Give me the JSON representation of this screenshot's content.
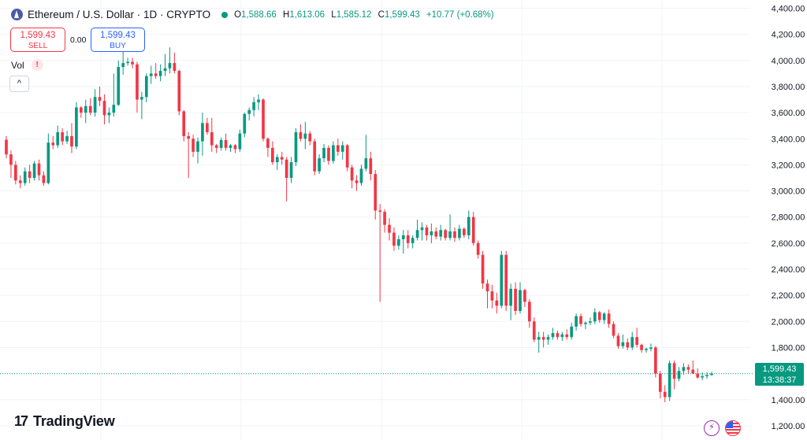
{
  "header": {
    "symbol": "Ethereum / U.S. Dollar · 1D · CRYPTO",
    "open_key": "O",
    "open": "1,588.66",
    "high_key": "H",
    "high": "1,613.06",
    "low_key": "L",
    "low": "1,585.12",
    "close_key": "C",
    "close": "1,599.43",
    "change": "+10.77 (+0.68%)"
  },
  "trade": {
    "sell_price": "1,599.43",
    "sell_label": "SELL",
    "spread": "0.00",
    "buy_price": "1,599.43",
    "buy_label": "BUY"
  },
  "indicator": {
    "vol_label": "Vol",
    "warn": "!",
    "collapse": "^"
  },
  "price_label": {
    "price": "1,599.43",
    "countdown": "13:38:37"
  },
  "brand": {
    "mark": "17",
    "name": "TradingView"
  },
  "icons": {
    "bolt": "lightning-icon",
    "flag": "us-flag-icon"
  },
  "colors": {
    "up": "#089981",
    "down": "#f23645",
    "grid": "#f0f3fa",
    "price_line": "#089981"
  },
  "chart_data": {
    "type": "candlestick",
    "title": "Ethereum / U.S. Dollar · 1D · CRYPTO",
    "ylim": [
      1100,
      4440
    ],
    "yticks": [
      4400,
      4200,
      4000,
      3800,
      3600,
      3400,
      3200,
      3000,
      2800,
      2600,
      2400,
      2200,
      2000,
      1800,
      1600,
      1400,
      1200
    ],
    "ytick_labels": [
      "4,400.00",
      "4,200.00",
      "4,000.00",
      "3,800.00",
      "3,600.00",
      "3,400.00",
      "3,200.00",
      "3,000.00",
      "2,800.00",
      "2,600.00",
      "2,400.00",
      "2,200.00",
      "2,000.00",
      "1,800.00",
      "",
      "1,400.00",
      "1,200.00"
    ],
    "last_price": 1599.43,
    "candles": [
      [
        3392,
        3420,
        3250,
        3280
      ],
      [
        3280,
        3310,
        3100,
        3200
      ],
      [
        3200,
        3230,
        3050,
        3080
      ],
      [
        3080,
        3120,
        3020,
        3060
      ],
      [
        3060,
        3180,
        3040,
        3150
      ],
      [
        3150,
        3200,
        3060,
        3100
      ],
      [
        3100,
        3230,
        3080,
        3210
      ],
      [
        3210,
        3240,
        3080,
        3120
      ],
      [
        3120,
        3150,
        3040,
        3060
      ],
      [
        3060,
        3440,
        3050,
        3370
      ],
      [
        3370,
        3420,
        3320,
        3350
      ],
      [
        3350,
        3500,
        3330,
        3450
      ],
      [
        3450,
        3480,
        3350,
        3380
      ],
      [
        3380,
        3460,
        3360,
        3420
      ],
      [
        3420,
        3520,
        3290,
        3340
      ],
      [
        3340,
        3680,
        3320,
        3640
      ],
      [
        3640,
        3650,
        3560,
        3600
      ],
      [
        3600,
        3700,
        3520,
        3650
      ],
      [
        3650,
        3710,
        3580,
        3600
      ],
      [
        3600,
        3780,
        3570,
        3720
      ],
      [
        3720,
        3800,
        3650,
        3690
      ],
      [
        3690,
        3740,
        3510,
        3580
      ],
      [
        3580,
        3640,
        3520,
        3600
      ],
      [
        3600,
        3900,
        3570,
        3660
      ],
      [
        3660,
        4000,
        3650,
        3950
      ],
      [
        3950,
        4080,
        3890,
        3980
      ],
      [
        3980,
        4020,
        3960,
        3990
      ],
      [
        3990,
        4020,
        3940,
        3970
      ],
      [
        3970,
        3990,
        3600,
        3700
      ],
      [
        3700,
        3760,
        3550,
        3720
      ],
      [
        3720,
        3900,
        3680,
        3880
      ],
      [
        3880,
        3960,
        3820,
        3900
      ],
      [
        3900,
        3980,
        3860,
        3880
      ],
      [
        3880,
        3970,
        3840,
        3920
      ],
      [
        3920,
        4050,
        3880,
        3940
      ],
      [
        3940,
        4100,
        3900,
        3980
      ],
      [
        3980,
        4060,
        3900,
        3920
      ],
      [
        3920,
        3930,
        3580,
        3610
      ],
      [
        3610,
        3620,
        3380,
        3420
      ],
      [
        3420,
        3450,
        3100,
        3400
      ],
      [
        3400,
        3430,
        3260,
        3300
      ],
      [
        3300,
        3410,
        3210,
        3380
      ],
      [
        3380,
        3600,
        3270,
        3520
      ],
      [
        3520,
        3560,
        3430,
        3450
      ],
      [
        3450,
        3560,
        3300,
        3350
      ],
      [
        3350,
        3360,
        3290,
        3330
      ],
      [
        3330,
        3410,
        3310,
        3390
      ],
      [
        3390,
        3440,
        3310,
        3330
      ],
      [
        3330,
        3360,
        3300,
        3350
      ],
      [
        3350,
        3360,
        3290,
        3320
      ],
      [
        3320,
        3470,
        3300,
        3440
      ],
      [
        3440,
        3600,
        3410,
        3590
      ],
      [
        3590,
        3640,
        3540,
        3620
      ],
      [
        3620,
        3720,
        3570,
        3680
      ],
      [
        3680,
        3740,
        3620,
        3700
      ],
      [
        3700,
        3710,
        3380,
        3400
      ],
      [
        3400,
        3410,
        3260,
        3330
      ],
      [
        3330,
        3380,
        3200,
        3220
      ],
      [
        3220,
        3280,
        3160,
        3260
      ],
      [
        3260,
        3300,
        3200,
        3240
      ],
      [
        3240,
        3260,
        2920,
        3100
      ],
      [
        3100,
        3260,
        3060,
        3220
      ],
      [
        3220,
        3480,
        3190,
        3450
      ],
      [
        3450,
        3510,
        3380,
        3400
      ],
      [
        3400,
        3530,
        3320,
        3440
      ],
      [
        3440,
        3460,
        3350,
        3380
      ],
      [
        3380,
        3400,
        3120,
        3150
      ],
      [
        3150,
        3280,
        3130,
        3250
      ],
      [
        3250,
        3360,
        3220,
        3330
      ],
      [
        3330,
        3350,
        3200,
        3230
      ],
      [
        3230,
        3380,
        3210,
        3350
      ],
      [
        3350,
        3400,
        3270,
        3300
      ],
      [
        3300,
        3380,
        3240,
        3350
      ],
      [
        3350,
        3360,
        3150,
        3180
      ],
      [
        3180,
        3200,
        3020,
        3080
      ],
      [
        3080,
        3120,
        3000,
        3060
      ],
      [
        3060,
        3200,
        3040,
        3170
      ],
      [
        3170,
        3430,
        3150,
        3250
      ],
      [
        3250,
        3300,
        3080,
        3130
      ],
      [
        3130,
        3160,
        2780,
        2850
      ],
      [
        2850,
        2900,
        2150,
        2840
      ],
      [
        2840,
        2860,
        2680,
        2740
      ],
      [
        2740,
        2790,
        2620,
        2680
      ],
      [
        2680,
        2720,
        2540,
        2580
      ],
      [
        2580,
        2660,
        2550,
        2630
      ],
      [
        2630,
        2700,
        2520,
        2660
      ],
      [
        2660,
        2700,
        2560,
        2600
      ],
      [
        2600,
        2660,
        2560,
        2640
      ],
      [
        2640,
        2780,
        2620,
        2700
      ],
      [
        2700,
        2760,
        2620,
        2720
      ],
      [
        2720,
        2740,
        2620,
        2660
      ],
      [
        2660,
        2750,
        2600,
        2690
      ],
      [
        2690,
        2720,
        2630,
        2650
      ],
      [
        2650,
        2740,
        2620,
        2700
      ],
      [
        2700,
        2710,
        2620,
        2640
      ],
      [
        2640,
        2820,
        2620,
        2690
      ],
      [
        2690,
        2720,
        2610,
        2640
      ],
      [
        2640,
        2740,
        2620,
        2710
      ],
      [
        2710,
        2720,
        2640,
        2660
      ],
      [
        2660,
        2850,
        2630,
        2800
      ],
      [
        2800,
        2840,
        2580,
        2600
      ],
      [
        2600,
        2620,
        2480,
        2510
      ],
      [
        2510,
        2540,
        2250,
        2290
      ],
      [
        2290,
        2320,
        2100,
        2230
      ],
      [
        2230,
        2280,
        2100,
        2160
      ],
      [
        2160,
        2220,
        2060,
        2120
      ],
      [
        2120,
        2540,
        2100,
        2510
      ],
      [
        2510,
        2540,
        2080,
        2120
      ],
      [
        2120,
        2290,
        2010,
        2250
      ],
      [
        2250,
        2300,
        2050,
        2080
      ],
      [
        2080,
        2300,
        2060,
        2240
      ],
      [
        2240,
        2250,
        2110,
        2150
      ],
      [
        2150,
        2170,
        1950,
        2000
      ],
      [
        2000,
        2030,
        1840,
        1860
      ],
      [
        1860,
        1920,
        1760,
        1880
      ],
      [
        1880,
        1920,
        1800,
        1860
      ],
      [
        1860,
        1900,
        1820,
        1880
      ],
      [
        1880,
        1950,
        1860,
        1910
      ],
      [
        1910,
        1930,
        1860,
        1880
      ],
      [
        1880,
        1920,
        1850,
        1900
      ],
      [
        1900,
        1940,
        1860,
        1880
      ],
      [
        1880,
        1990,
        1860,
        1960
      ],
      [
        1960,
        2060,
        1930,
        2040
      ],
      [
        2040,
        2060,
        1960,
        1980
      ],
      [
        1980,
        2000,
        1940,
        1990
      ],
      [
        1990,
        2030,
        1970,
        2000
      ],
      [
        2000,
        2100,
        1980,
        2070
      ],
      [
        2070,
        2080,
        1990,
        2010
      ],
      [
        2010,
        2070,
        1980,
        2060
      ],
      [
        2060,
        2090,
        1950,
        1980
      ],
      [
        1980,
        2000,
        1870,
        1890
      ],
      [
        1890,
        1910,
        1790,
        1810
      ],
      [
        1810,
        1900,
        1790,
        1840
      ],
      [
        1840,
        1870,
        1780,
        1800
      ],
      [
        1800,
        1920,
        1780,
        1880
      ],
      [
        1880,
        1950,
        1800,
        1820
      ],
      [
        1820,
        1830,
        1760,
        1780
      ],
      [
        1780,
        1800,
        1760,
        1790
      ],
      [
        1790,
        1830,
        1770,
        1800
      ],
      [
        1800,
        1810,
        1570,
        1600
      ],
      [
        1600,
        1620,
        1410,
        1460
      ],
      [
        1460,
        1510,
        1380,
        1420
      ],
      [
        1420,
        1700,
        1390,
        1680
      ],
      [
        1680,
        1700,
        1480,
        1560
      ],
      [
        1560,
        1650,
        1540,
        1620
      ],
      [
        1620,
        1680,
        1590,
        1650
      ],
      [
        1650,
        1670,
        1600,
        1630
      ],
      [
        1630,
        1700,
        1600,
        1600
      ],
      [
        1600,
        1640,
        1560,
        1570
      ],
      [
        1570,
        1610,
        1550,
        1580
      ],
      [
        1580,
        1610,
        1560,
        1589
      ],
      [
        1588.66,
        1613.06,
        1585.12,
        1599.43
      ]
    ]
  }
}
